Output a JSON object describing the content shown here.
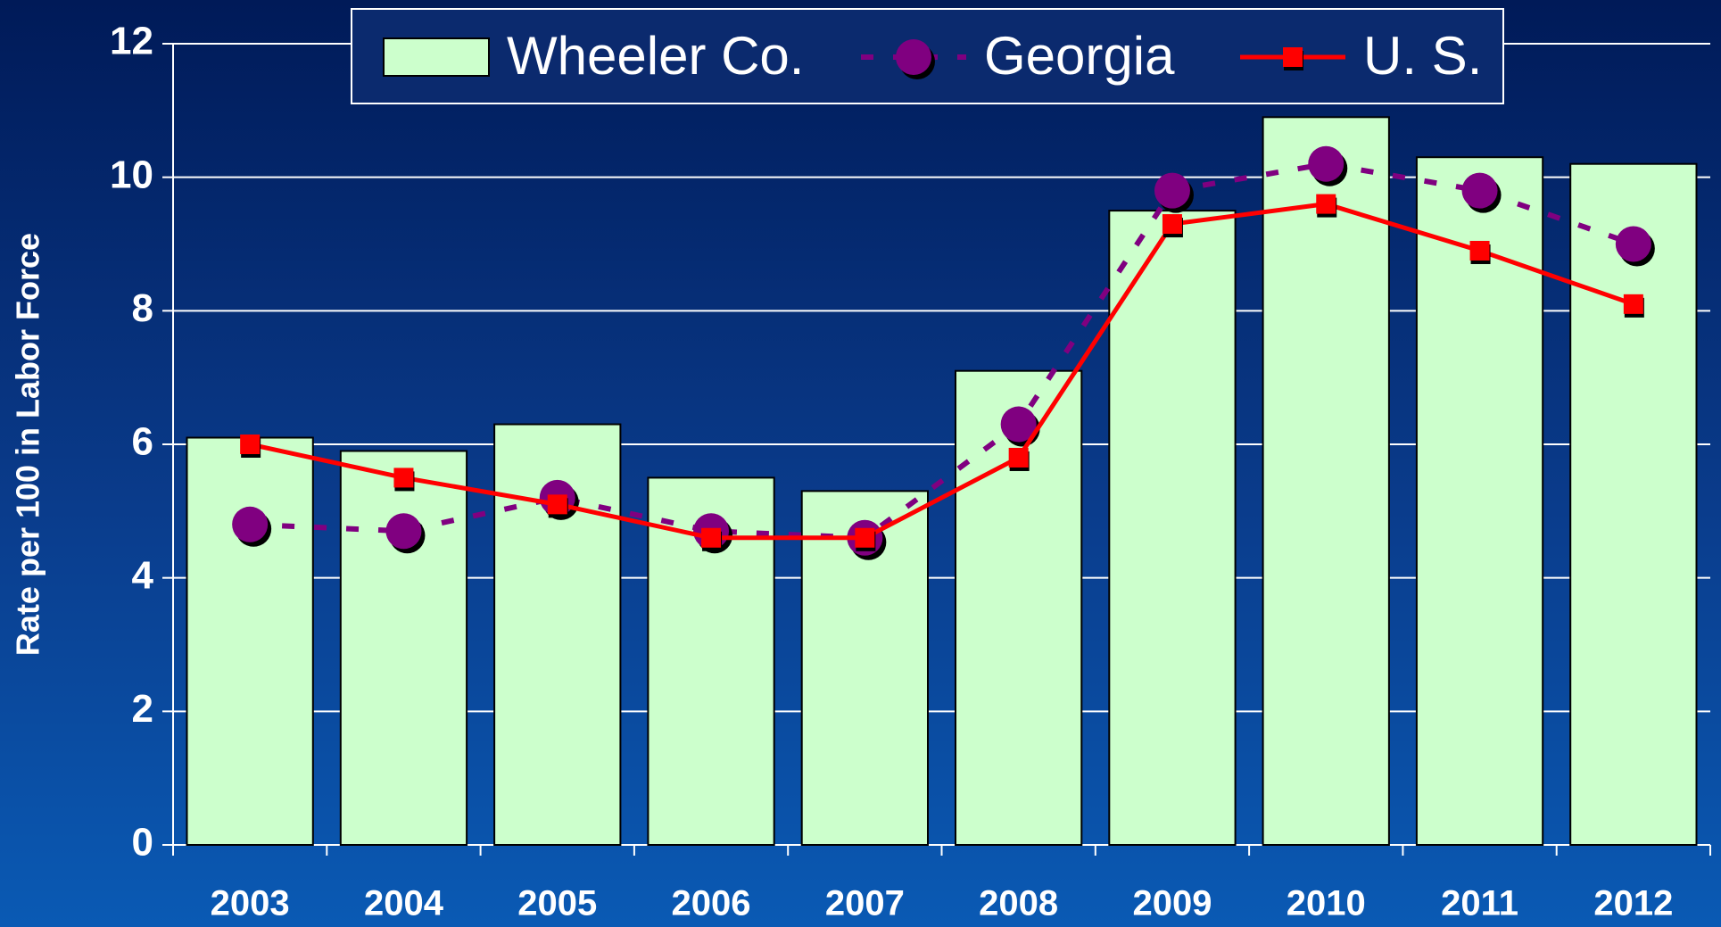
{
  "chart_data": {
    "type": "bar",
    "y_label": "Rate per 100 in Labor Force",
    "categories": [
      "2003",
      "2004",
      "2005",
      "2006",
      "2007",
      "2008",
      "2009",
      "2010",
      "2011",
      "2012"
    ],
    "series": [
      {
        "name": "Wheeler Co.",
        "type": "bar",
        "color": "#ccffcc",
        "values": [
          6.1,
          5.9,
          6.3,
          5.5,
          5.3,
          7.1,
          9.5,
          10.9,
          10.3,
          10.2
        ]
      },
      {
        "name": "Georgia",
        "type": "line",
        "marker": "circle",
        "dashed": true,
        "color": "#800080",
        "values": [
          4.8,
          4.7,
          5.2,
          4.7,
          4.6,
          6.3,
          9.8,
          10.2,
          9.8,
          9.0
        ]
      },
      {
        "name": "U. S.",
        "type": "line",
        "marker": "square",
        "dashed": false,
        "color": "#ff0000",
        "values": [
          6.0,
          5.5,
          5.1,
          4.6,
          4.6,
          5.8,
          9.3,
          9.6,
          8.9,
          8.1
        ]
      }
    ],
    "ylim": [
      0,
      12
    ],
    "yticks": [
      0,
      2,
      4,
      6,
      8,
      10,
      12
    ],
    "grid": true,
    "legend": "top"
  }
}
